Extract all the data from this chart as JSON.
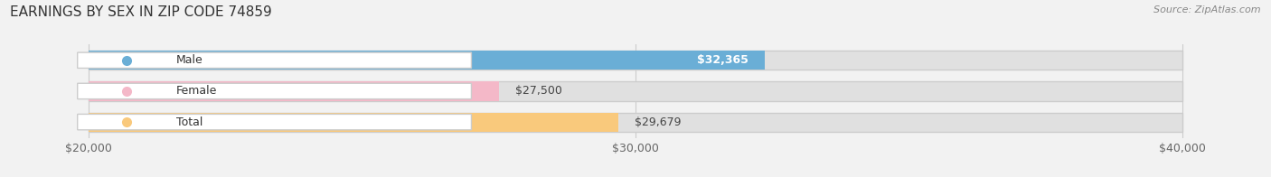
{
  "title": "EARNINGS BY SEX IN ZIP CODE 74859",
  "source_text": "Source: ZipAtlas.com",
  "categories": [
    "Male",
    "Female",
    "Total"
  ],
  "values": [
    32365,
    27500,
    29679
  ],
  "bar_colors": [
    "#6aaed6",
    "#f4b8c8",
    "#f9c97c"
  ],
  "background_color": "#f2f2f2",
  "bar_bg_color": "#e0e0e0",
  "xmin": 20000,
  "xmax": 40000,
  "xticks": [
    20000,
    30000,
    40000
  ],
  "xtick_labels": [
    "$20,000",
    "$30,000",
    "$40,000"
  ],
  "value_labels": [
    "$32,365",
    "$27,500",
    "$29,679"
  ],
  "value_label_inside": [
    true,
    false,
    false
  ],
  "figwidth": 14.06,
  "figheight": 1.96,
  "title_fontsize": 11,
  "source_fontsize": 8,
  "bar_label_fontsize": 9,
  "category_fontsize": 9
}
